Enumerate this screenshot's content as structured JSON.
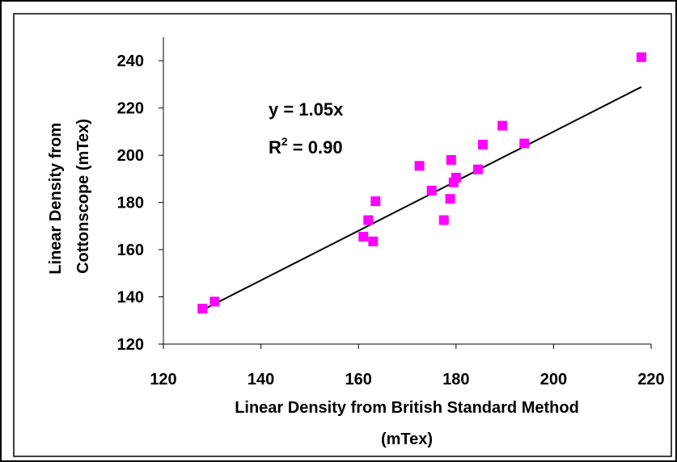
{
  "chart_data": {
    "type": "scatter",
    "title": "",
    "xlabel_lines": [
      "Linear Density from British Standard Method",
      "(mTex)"
    ],
    "ylabel_lines": [
      "Linear Density from",
      "Cottonscope (mTex)"
    ],
    "xlim": [
      120,
      220
    ],
    "ylim": [
      120,
      250
    ],
    "x_ticks": [
      "120",
      "140",
      "160",
      "180",
      "200",
      "220"
    ],
    "y_ticks": [
      "120",
      "140",
      "160",
      "180",
      "200",
      "220",
      "240"
    ],
    "grid": false,
    "legend": "none",
    "marker": "square",
    "marker_color": "#ff00ff",
    "trendline_color": "#000000",
    "trendline": {
      "slope": 1.05,
      "x_start": 128,
      "x_end": 218
    },
    "annotation": {
      "equation": "y = 1.05x",
      "r2_prefix": "R",
      "r2_sup": "2",
      "r2_suffix": " = 0.90"
    },
    "points": [
      {
        "x": 128,
        "y": 135
      },
      {
        "x": 130.5,
        "y": 138
      },
      {
        "x": 161,
        "y": 165.5
      },
      {
        "x": 162,
        "y": 172.5
      },
      {
        "x": 163,
        "y": 163.5
      },
      {
        "x": 163.5,
        "y": 180.5
      },
      {
        "x": 172.5,
        "y": 195.5
      },
      {
        "x": 175,
        "y": 185
      },
      {
        "x": 177.5,
        "y": 172.5
      },
      {
        "x": 178.8,
        "y": 181.5
      },
      {
        "x": 179,
        "y": 198
      },
      {
        "x": 179.5,
        "y": 188.5
      },
      {
        "x": 180,
        "y": 190.5
      },
      {
        "x": 184.5,
        "y": 194
      },
      {
        "x": 185.5,
        "y": 204.5
      },
      {
        "x": 189.5,
        "y": 212.5
      },
      {
        "x": 194,
        "y": 205
      },
      {
        "x": 218,
        "y": 241.5
      }
    ]
  }
}
